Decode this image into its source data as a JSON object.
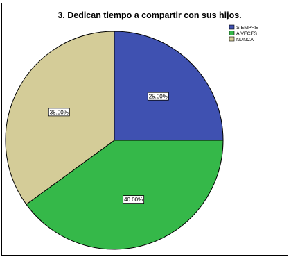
{
  "chart_data": {
    "type": "pie",
    "title": "3.    Dedican tiempo a compartir con sus hijos.",
    "categories": [
      "SIEMPRE",
      "A VECES",
      "NUNCA"
    ],
    "values": [
      25.0,
      40.0,
      35.0
    ],
    "labels": [
      "25.00%",
      "40.00%",
      "35.00%"
    ],
    "colors": [
      "#3f51b1",
      "#35b849",
      "#d4cc98"
    ],
    "legend_position": "top-right",
    "start_angle_deg": 0,
    "direction": "clockwise"
  }
}
